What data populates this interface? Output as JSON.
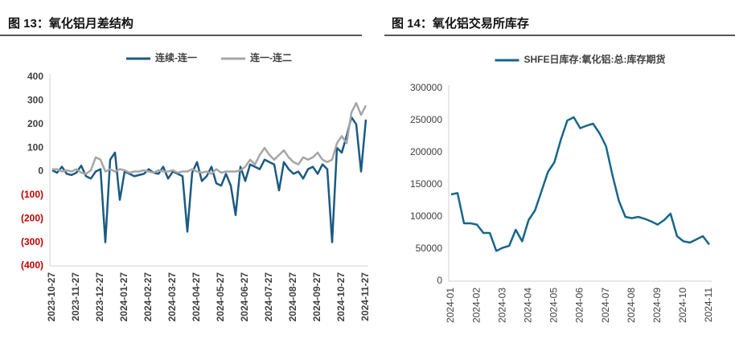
{
  "chart_data": [
    {
      "type": "line",
      "title": "图 13：氧化铝月差结构",
      "categories": [
        "2023-10-27",
        null,
        null,
        null,
        null,
        "2023-11-27",
        null,
        null,
        null,
        null,
        "2023-12-27",
        null,
        null,
        null,
        null,
        "2024-01-27",
        null,
        null,
        null,
        null,
        "2024-02-27",
        null,
        null,
        null,
        null,
        "2024-03-27",
        null,
        null,
        null,
        null,
        "2024-04-27",
        null,
        null,
        null,
        null,
        "2024-05-27",
        null,
        null,
        null,
        null,
        "2024-06-27",
        null,
        null,
        null,
        null,
        "2024-07-27",
        null,
        null,
        null,
        null,
        "2024-08-27",
        null,
        null,
        null,
        null,
        "2024-09-27",
        null,
        null,
        null,
        null,
        "2024-10-27",
        null,
        null,
        null,
        null,
        "2024-11-27"
      ],
      "series": [
        {
          "name": "连续-连一",
          "color": "#1b5a82",
          "values": [
            5,
            -5,
            20,
            -10,
            -15,
            -5,
            25,
            -20,
            -30,
            0,
            10,
            -300,
            50,
            80,
            -120,
            0,
            -10,
            -20,
            -15,
            -10,
            10,
            -5,
            -10,
            20,
            -30,
            0,
            -10,
            -20,
            -255,
            -5,
            40,
            -40,
            -20,
            20,
            -50,
            -60,
            -10,
            -60,
            -185,
            20,
            -40,
            30,
            20,
            10,
            50,
            40,
            30,
            -80,
            40,
            10,
            -10,
            0,
            -30,
            10,
            20,
            -10,
            30,
            10,
            -300,
            100,
            80,
            150,
            230,
            200,
            0,
            220
          ]
        },
        {
          "name": "连一-连二",
          "color": "#a6a6a6",
          "values": [
            10,
            10,
            0,
            5,
            0,
            10,
            -5,
            -10,
            5,
            60,
            50,
            0,
            10,
            0,
            10,
            5,
            -5,
            0,
            0,
            5,
            0,
            -5,
            5,
            0,
            0,
            5,
            -5,
            0,
            0,
            10,
            0,
            -5,
            0,
            -10,
            10,
            -5,
            0,
            0,
            0,
            5,
            20,
            50,
            30,
            70,
            100,
            70,
            50,
            70,
            90,
            60,
            40,
            30,
            60,
            50,
            60,
            80,
            50,
            40,
            50,
            120,
            150,
            120,
            250,
            290,
            240,
            280
          ]
        }
      ],
      "ylim": [
        -400,
        400
      ],
      "yticks": [
        400,
        300,
        200,
        100,
        0,
        {
          "value": -100,
          "label": "(100)"
        },
        {
          "value": -200,
          "label": "(200)"
        },
        {
          "value": -300,
          "label": "(300)"
        },
        {
          "value": -400,
          "label": "(400)"
        }
      ],
      "negative_tick_color": "#c00000",
      "legend": "top"
    },
    {
      "type": "line",
      "title": "图 14：氧化铝交易所库存",
      "categories": [
        "2024-01",
        null,
        null,
        null,
        "2024-02",
        null,
        null,
        null,
        "2024-03",
        null,
        null,
        null,
        "2024-04",
        null,
        null,
        null,
        "2024-05",
        null,
        null,
        null,
        "2024-06",
        null,
        null,
        null,
        "2024-07",
        null,
        null,
        null,
        "2024-08",
        null,
        null,
        null,
        "2024-09",
        null,
        null,
        null,
        "2024-10",
        null,
        null,
        null,
        "2024-11"
      ],
      "series": [
        {
          "name": "SHFE日库存:氧化铝:总:库存期货",
          "color": "#17668a",
          "values": [
            135000,
            137000,
            90000,
            90000,
            88000,
            75000,
            75000,
            47000,
            52000,
            55000,
            80000,
            62000,
            95000,
            110000,
            140000,
            170000,
            185000,
            220000,
            250000,
            255000,
            238000,
            242000,
            245000,
            230000,
            210000,
            165000,
            125000,
            100000,
            98000,
            100000,
            97000,
            93000,
            88000,
            95000,
            105000,
            70000,
            62000,
            60000,
            65000,
            70000,
            57000
          ]
        }
      ],
      "ylim": [
        0,
        300000
      ],
      "yticks": [
        0,
        50000,
        100000,
        150000,
        200000,
        250000,
        300000
      ],
      "legend": "top"
    }
  ]
}
